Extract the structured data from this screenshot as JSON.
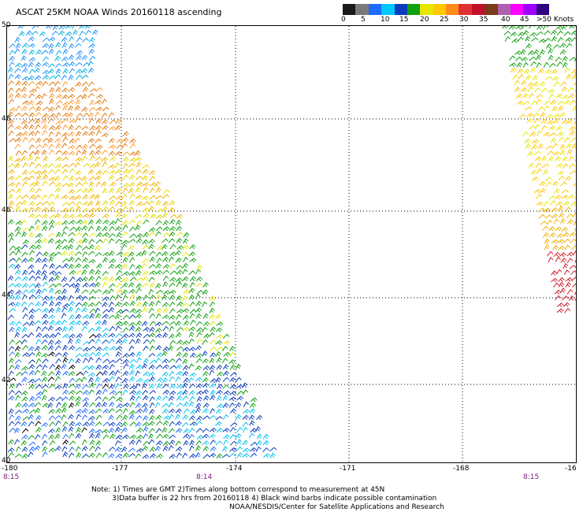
{
  "title": "ASCAT 25KM NOAA Winds 20160118 ascending",
  "colorbar": {
    "labels": [
      "0",
      "5",
      "10",
      "15",
      "20",
      "25",
      "30",
      "35",
      "40",
      "45",
      ">50 Knots"
    ],
    "colors": [
      "#1a1a1a",
      "#7a7a7a",
      "#1e6bff",
      "#00c8ff",
      "#0a3dbd",
      "#10a010",
      "#e6e600",
      "#ffc800",
      "#ff8c1a",
      "#e03030",
      "#c0102a",
      "#7a3b1a",
      "#b060b0",
      "#ff00ff",
      "#a000ff",
      "#300080"
    ]
  },
  "map": {
    "lat_labels": [
      "50",
      "48",
      "46",
      "44",
      "42",
      "40"
    ],
    "lon_labels": [
      "-180",
      "-177",
      "-174",
      "-171",
      "-168",
      "-16"
    ],
    "time_labels": [
      "8:15",
      "8:14",
      "8:15"
    ]
  },
  "notes": {
    "line1": "Note: 1) Times are GMT 2)Times along bottom correspond to measurement at 45N",
    "line2": "3)Data buffer is 22 hrs from 20160118 4) Black wind barbs indicate possible contamination",
    "line3": "NOAA/NESDIS/Center for Satellite Applications and Research"
  }
}
